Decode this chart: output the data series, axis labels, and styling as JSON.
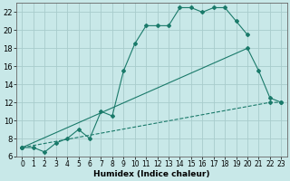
{
  "xlabel": "Humidex (Indice chaleur)",
  "bg_color": "#c8e8e8",
  "grid_color": "#a8cccc",
  "line_color": "#1a7a6a",
  "xlim": [
    -0.5,
    23.5
  ],
  "ylim": [
    6,
    23
  ],
  "xticks": [
    0,
    1,
    2,
    3,
    4,
    5,
    6,
    7,
    8,
    9,
    10,
    11,
    12,
    13,
    14,
    15,
    16,
    17,
    18,
    19,
    20,
    21,
    22,
    23
  ],
  "yticks": [
    6,
    8,
    10,
    12,
    14,
    16,
    18,
    20,
    22
  ],
  "line1_x": [
    0,
    1,
    2,
    3,
    4,
    5,
    6,
    7,
    8,
    9,
    10,
    11,
    12,
    13,
    14,
    15,
    16,
    17,
    18,
    19,
    20
  ],
  "line1_y": [
    7.0,
    7.0,
    6.5,
    7.5,
    8.0,
    9.0,
    8.0,
    11.0,
    10.5,
    15.5,
    18.5,
    20.5,
    20.5,
    20.5,
    22.5,
    22.5,
    22.0,
    22.5,
    22.5,
    21.0,
    19.5
  ],
  "line2_x": [
    0,
    20,
    21,
    22,
    23
  ],
  "line2_y": [
    7.0,
    18.0,
    15.5,
    12.5,
    12.0
  ],
  "line3_x": [
    0,
    22,
    23
  ],
  "line3_y": [
    7.0,
    12.0,
    12.0
  ]
}
